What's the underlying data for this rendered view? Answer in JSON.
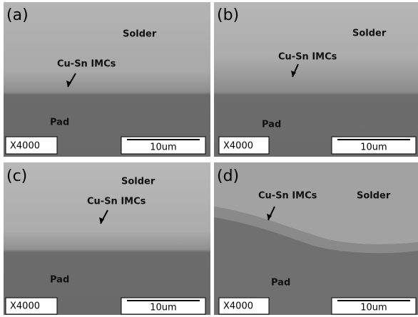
{
  "panels": [
    {
      "label": "(a)",
      "solder": "Solder",
      "imc": "Cu-Sn  IMCs",
      "pad": "Pad",
      "magnification": "X4000",
      "scale": "10um"
    },
    {
      "label": "(b)",
      "solder": "Solder",
      "imc": "Cu-Sn  IMCs",
      "pad": "Pad",
      "magnification": "X4000",
      "scale": "10um"
    },
    {
      "label": "(c)",
      "solder": "Solder",
      "imc": "Cu-Sn  IMCs",
      "pad": "Pad",
      "magnification": "X4000",
      "scale": "10um"
    },
    {
      "label": "(d)",
      "solder": "Solder",
      "imc": "Cu-Sn  IMCs",
      "pad": "Pad",
      "magnification": "X4000",
      "scale": "10um"
    }
  ]
}
